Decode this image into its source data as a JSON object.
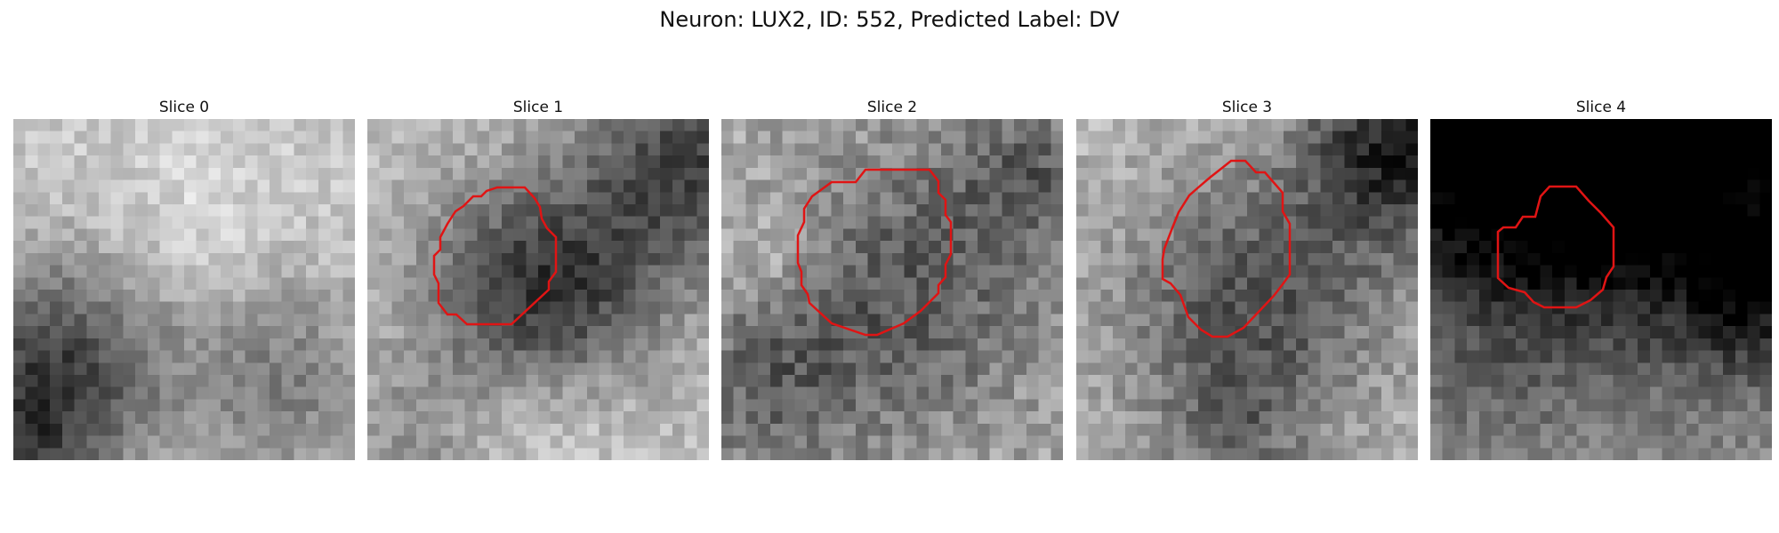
{
  "title": "Neuron: LUX2, ID: 552, Predicted Label: DV",
  "outline_color": "#e01414",
  "panels": [
    {
      "label": "Slice 0",
      "has_outline": false
    },
    {
      "label": "Slice 1",
      "has_outline": true
    },
    {
      "label": "Slice 2",
      "has_outline": true
    },
    {
      "label": "Slice 3",
      "has_outline": true
    },
    {
      "label": "Slice 4",
      "has_outline": true
    }
  ]
}
